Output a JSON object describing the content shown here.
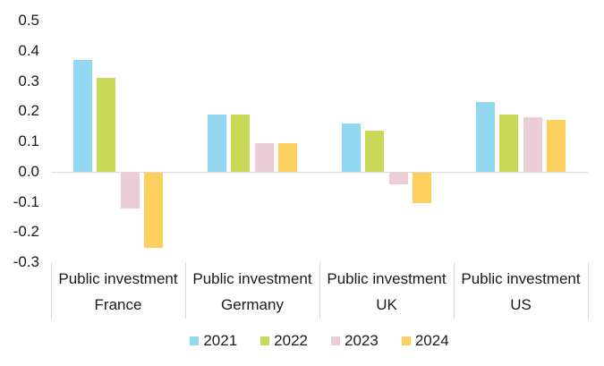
{
  "chart_data": {
    "type": "bar",
    "title": "",
    "xlabel": "",
    "ylabel": "",
    "categories": [
      {
        "line1": "Public investment",
        "line2": "France"
      },
      {
        "line1": "Public investment",
        "line2": "Germany"
      },
      {
        "line1": "Public investment",
        "line2": "UK"
      },
      {
        "line1": "Public investment",
        "line2": "US"
      }
    ],
    "series": [
      {
        "name": "2021",
        "color": "#93D8F3",
        "values": [
          0.37,
          0.19,
          0.16,
          0.23
        ]
      },
      {
        "name": "2022",
        "color": "#C9DA5B",
        "values": [
          0.31,
          0.19,
          0.135,
          0.19
        ]
      },
      {
        "name": "2023",
        "color": "#EBCDD8",
        "values": [
          -0.12,
          0.095,
          -0.04,
          0.18
        ]
      },
      {
        "name": "2024",
        "color": "#FDCF5E",
        "values": [
          -0.25,
          0.095,
          -0.1,
          0.17
        ]
      }
    ],
    "ylim": [
      -0.3,
      0.5
    ],
    "yticks": [
      "0.5",
      "0.4",
      "0.3",
      "0.2",
      "0.1",
      "0.0",
      "-0.1",
      "-0.2",
      "-0.3"
    ],
    "grid": "zero-line-only",
    "legend_position": "bottom",
    "gridline_color": "#D9D9D9",
    "text_color": "#1a1a1a"
  }
}
